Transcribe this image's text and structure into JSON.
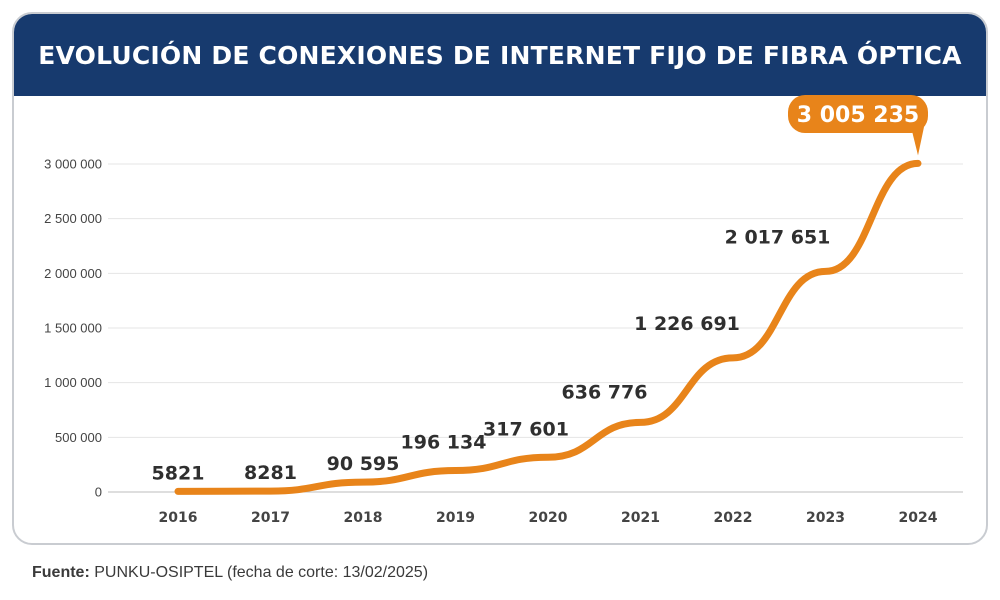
{
  "header": {
    "title": "EVOLUCIÓN DE CONEXIONES DE INTERNET FIJO DE FIBRA ÓPTICA"
  },
  "footer": {
    "source_label": "Fuente:",
    "source_text": "PUNKU-OSIPTEL (fecha de corte: 13/02/2025)"
  },
  "colors": {
    "header_bg": "#173a6e",
    "line": "#e8841a",
    "highlight_bg": "#e8841a"
  },
  "chart_data": {
    "type": "line",
    "title": "EVOLUCIÓN DE CONEXIONES DE INTERNET FIJO DE FIBRA ÓPTICA",
    "xlabel": "",
    "ylabel": "",
    "x": [
      "2016",
      "2017",
      "2018",
      "2019",
      "2020",
      "2021",
      "2022",
      "2023",
      "2024"
    ],
    "values": [
      5821,
      8281,
      90595,
      196134,
      317601,
      636776,
      1226691,
      2017651,
      3005235
    ],
    "data_labels": [
      "5821",
      "8281",
      "90 595",
      "196 134",
      "317 601",
      "636 776",
      "1 226 691",
      "2 017 651",
      "3 005 235"
    ],
    "highlighted_point": "2024",
    "ylim": [
      0,
      3000000
    ],
    "yticks": [
      0,
      500000,
      1000000,
      1500000,
      2000000,
      2500000,
      3000000
    ],
    "ytick_labels": [
      "0",
      "500 000",
      "1 000 000",
      "1 500 000",
      "2 000 000",
      "2 500 000",
      "3 000 000"
    ],
    "grid": true,
    "legend": "none"
  }
}
